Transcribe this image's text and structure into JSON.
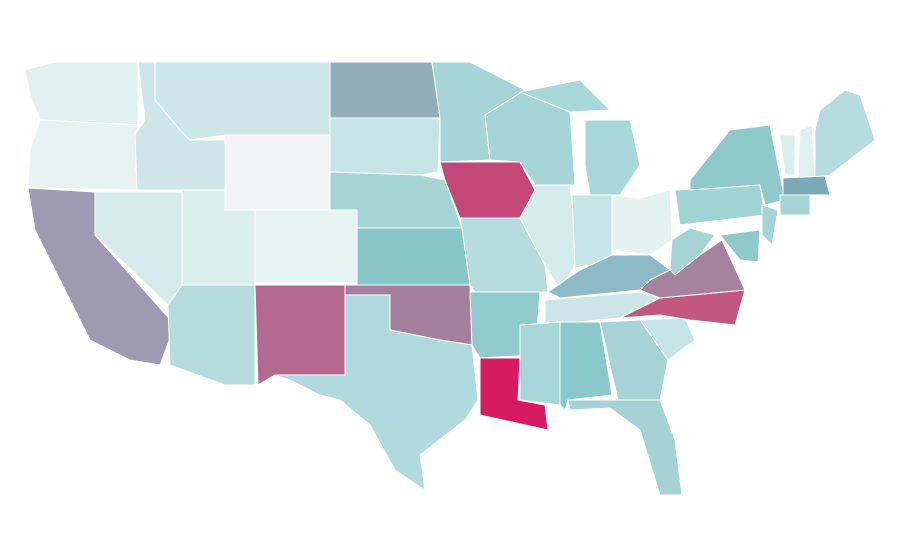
{
  "map": {
    "region_colors": [
      "#e0f0f0",
      "#e8f2f2",
      "#9e9ab2",
      "#d5ebeb",
      "#cfe6e8",
      "#cde6e8",
      "#f2f4f5",
      "#dcefef",
      "#e6f3f3",
      "#b5dcdd",
      "#b46a8d",
      "#93adb9",
      "#c5e4e4",
      "#a5d4d5",
      "#88c6c8",
      "#a47f9e",
      "#b0dadd",
      "#a5d5d7",
      "#c4477a",
      "#b6dcdf",
      "#90cacc",
      "#d61b62",
      "#a5d5d7",
      "#d5ecec",
      "#a8d7d9",
      "#a8d7d9",
      "#c8e5e5",
      "#e5f2f2",
      "#8dbac6",
      "#cce6e8",
      "#a7d6d8",
      "#8ac8ca",
      "#a5d3d6",
      "#a5d3d5",
      "#c5e4e5",
      "#c2577f",
      "#a5829e",
      "#a5d3d6",
      "#a0d3d4",
      "#8fc8cb",
      "#d9eeee",
      "#e0f0f0",
      "#b5dcde",
      "#7ba9b5",
      "#a5d3d6",
      "#a5d3d6",
      "#8fc8cb"
    ]
  }
}
